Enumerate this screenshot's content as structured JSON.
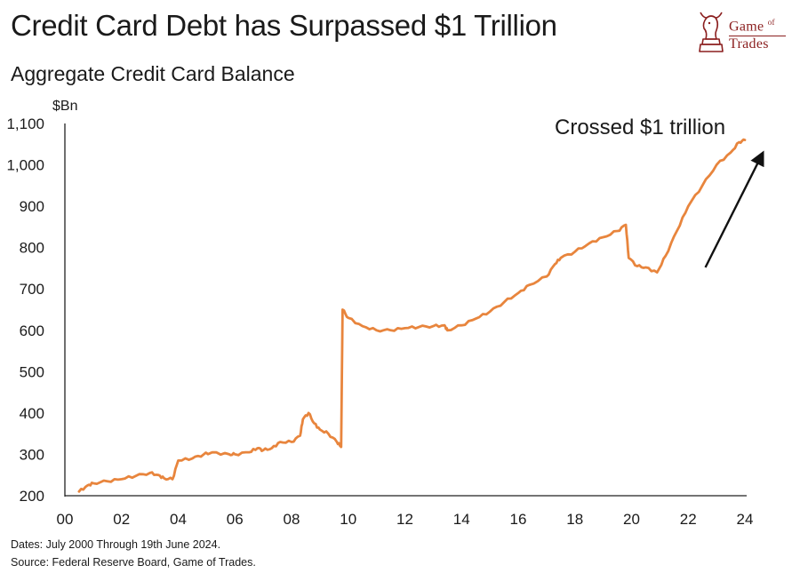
{
  "header": {
    "title": "Credit Card Debt has Surpassed $1 Trillion",
    "subtitle": "Aggregate Credit Card Balance"
  },
  "logo": {
    "line1": "Game",
    "line1_small": "of",
    "line2": "Trades",
    "icon": "bull-knight-chess-icon",
    "color": "#8b1f1f"
  },
  "footer": {
    "dates_note": "Dates: July 2000 Through 19th June 2024.",
    "source_note": "Source: Federal Reserve Board, Game of Trades."
  },
  "chart_data": {
    "type": "line",
    "title": "Aggregate Credit Card Balance",
    "ylabel": "$Bn",
    "xlabel": "",
    "xlim": [
      2000,
      2024
    ],
    "ylim": [
      200,
      1100
    ],
    "x_ticks": [
      2000,
      2002,
      2004,
      2006,
      2008,
      2010,
      2012,
      2014,
      2016,
      2018,
      2020,
      2022,
      2024
    ],
    "x_tick_labels": [
      "00",
      "02",
      "04",
      "06",
      "08",
      "10",
      "12",
      "14",
      "16",
      "18",
      "20",
      "22",
      "24"
    ],
    "y_ticks": [
      200,
      300,
      400,
      500,
      600,
      700,
      800,
      900,
      1000,
      1100
    ],
    "y_tick_labels": [
      "200",
      "300",
      "400",
      "500",
      "600",
      "700",
      "800",
      "900",
      "1,000",
      "1,100"
    ],
    "grid": false,
    "line_color": "#e8853d",
    "annotation": {
      "text": "Crossed $1 trillion",
      "arrow_from": [
        2022.7,
        752
      ],
      "arrow_to": [
        2024.6,
        1058
      ]
    },
    "series": [
      {
        "name": "",
        "x": [
          2000.5,
          2000.8,
          2001.0,
          2001.5,
          2002.0,
          2002.5,
          2003.0,
          2003.3,
          2003.5,
          2003.8,
          2004.0,
          2004.5,
          2004.9,
          2005.2,
          2005.8,
          2006.0,
          2006.5,
          2006.8,
          2007.0,
          2007.3,
          2007.6,
          2008.0,
          2008.3,
          2008.4,
          2008.6,
          2008.8,
          2009.0,
          2009.3,
          2009.6,
          2009.75,
          2009.8,
          2010.0,
          2010.5,
          2011.0,
          2011.5,
          2012.0,
          2012.5,
          2013.0,
          2013.4,
          2013.5,
          2014.0,
          2014.5,
          2015.0,
          2015.5,
          2016.0,
          2016.4,
          2017.0,
          2017.3,
          2017.5,
          2018.0,
          2018.5,
          2019.0,
          2019.5,
          2019.8,
          2019.9,
          2020.2,
          2020.5,
          2020.9,
          2021.2,
          2021.6,
          2022.0,
          2022.5,
          2023.0,
          2023.5,
          2023.8,
          2024.0
        ],
        "y": [
          210,
          225,
          230,
          235,
          240,
          248,
          255,
          250,
          242,
          240,
          285,
          290,
          300,
          305,
          300,
          300,
          305,
          315,
          310,
          315,
          330,
          330,
          345,
          385,
          400,
          375,
          360,
          350,
          330,
          318,
          650,
          630,
          610,
          600,
          600,
          605,
          608,
          610,
          612,
          600,
          612,
          628,
          645,
          668,
          690,
          710,
          730,
          760,
          775,
          790,
          810,
          825,
          840,
          855,
          775,
          755,
          752,
          740,
          780,
          840,
          900,
          950,
          1000,
          1030,
          1055,
          1060
        ]
      }
    ]
  }
}
